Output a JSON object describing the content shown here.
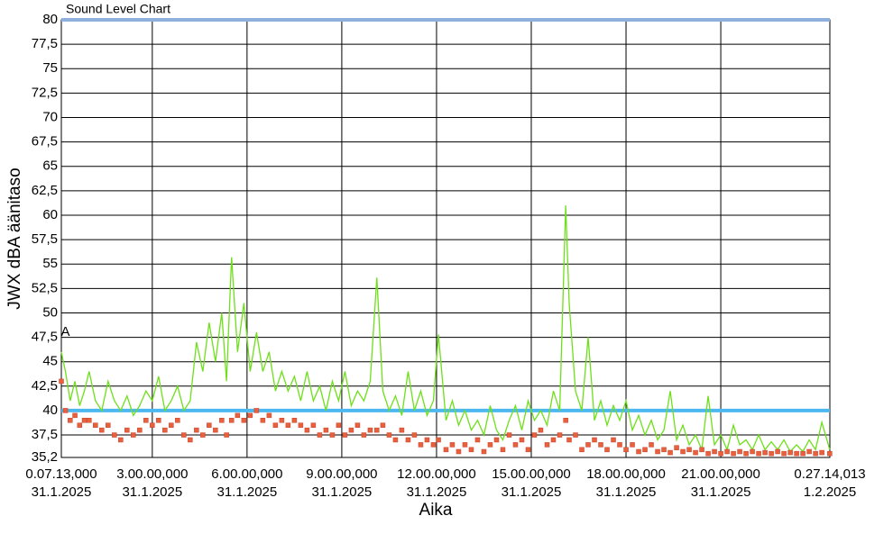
{
  "chart_data": {
    "type": "line",
    "title": "Sound Level Chart",
    "x_label": "Aika",
    "y_label": "JWX dBA äänitaso",
    "x": [
      0.12,
      0.25,
      0.4,
      0.55,
      0.7,
      0.85,
      1.0,
      1.2,
      1.4,
      1.6,
      1.8,
      2.0,
      2.2,
      2.4,
      2.6,
      2.8,
      3.0,
      3.2,
      3.4,
      3.6,
      3.8,
      4.0,
      4.2,
      4.4,
      4.6,
      4.8,
      5.0,
      5.2,
      5.35,
      5.51,
      5.7,
      5.9,
      6.1,
      6.3,
      6.5,
      6.7,
      6.9,
      7.1,
      7.3,
      7.5,
      7.7,
      7.9,
      8.1,
      8.3,
      8.5,
      8.7,
      8.9,
      9.1,
      9.3,
      9.5,
      9.7,
      9.9,
      10.11,
      10.3,
      10.5,
      10.7,
      10.9,
      11.1,
      11.3,
      11.5,
      11.7,
      11.9,
      12.06,
      12.3,
      12.5,
      12.7,
      12.9,
      13.1,
      13.3,
      13.5,
      13.7,
      13.9,
      14.1,
      14.3,
      14.5,
      14.7,
      14.9,
      15.1,
      15.3,
      15.5,
      15.7,
      15.9,
      16.09,
      16.2,
      16.4,
      16.6,
      16.8,
      17.0,
      17.2,
      17.4,
      17.6,
      17.8,
      18.0,
      18.2,
      18.4,
      18.6,
      18.8,
      19.0,
      19.2,
      19.4,
      19.6,
      19.8,
      20.0,
      20.2,
      20.4,
      20.6,
      20.8,
      21.0,
      21.2,
      21.4,
      21.6,
      21.8,
      22.0,
      22.2,
      22.4,
      22.6,
      22.8,
      23.0,
      23.2,
      23.4,
      23.6,
      23.8,
      24.0,
      24.2,
      24.45
    ],
    "series": [
      {
        "color": "#6ee01a",
        "marker": "none",
        "values": [
          46,
          44,
          41,
          43,
          40.5,
          42,
          44,
          41,
          40,
          43,
          41,
          40,
          41.5,
          39.5,
          40.5,
          42,
          41,
          43.5,
          40,
          41,
          42.5,
          40,
          41,
          47,
          44,
          49,
          45,
          50,
          43,
          55.7,
          46,
          51,
          44,
          48,
          44,
          46,
          42,
          44,
          42,
          43.5,
          41,
          44,
          41,
          42.5,
          40,
          43,
          41,
          44,
          40.5,
          42,
          41,
          43,
          53.6,
          42,
          40,
          41.5,
          39.5,
          44,
          40,
          42,
          39.5,
          41,
          47.8,
          39,
          41,
          38.5,
          40,
          38,
          39,
          37.5,
          40.5,
          38,
          37,
          39,
          40.5,
          38,
          41,
          39,
          40,
          38.5,
          42,
          40,
          61,
          51,
          42,
          40,
          47.5,
          39,
          41,
          38.5,
          40.5,
          39,
          41,
          38,
          39.5,
          37.5,
          39,
          37,
          38,
          42,
          37,
          38.5,
          36.5,
          37.5,
          36,
          41.5,
          36.5,
          37.5,
          36,
          38.5,
          36.5,
          37,
          36,
          37.5,
          36,
          36.8,
          36,
          37,
          35.8,
          36.5,
          35.8,
          37,
          36,
          38.8,
          36
        ]
      },
      {
        "color": "#e8603c",
        "marker": "square",
        "values": [
          43,
          40,
          39,
          39.5,
          38.5,
          39,
          39,
          38.5,
          38,
          38.5,
          37.5,
          37,
          38,
          37.5,
          38,
          39,
          38.5,
          39,
          38,
          38.5,
          39,
          37.5,
          37,
          38,
          37.5,
          38.5,
          38,
          39,
          37.5,
          39,
          39.5,
          39,
          39.5,
          40,
          39,
          39.5,
          38.5,
          39,
          38.5,
          39,
          38.5,
          38,
          38.5,
          37.5,
          38,
          37.5,
          38.5,
          37.5,
          38,
          38.5,
          37.5,
          38,
          38,
          38.5,
          37.5,
          37,
          38,
          37,
          37.5,
          36.5,
          37,
          36.5,
          37,
          36,
          36.5,
          35.8,
          36.5,
          36,
          37,
          35.8,
          36.5,
          37,
          36,
          37.5,
          36.5,
          37,
          36,
          37.5,
          38,
          36.5,
          37,
          37.5,
          39,
          37,
          37.5,
          36,
          36.5,
          37,
          36.5,
          36,
          37,
          36.5,
          36,
          36.5,
          35.8,
          36,
          36.5,
          35.8,
          36,
          35.7,
          36.2,
          35.8,
          36,
          35.7,
          36,
          35.6,
          35.8,
          35.6,
          35.8,
          35.6,
          35.8,
          35.6,
          35.8,
          35.6,
          35.7,
          35.6,
          35.8,
          35.6,
          35.7,
          35.6,
          35.6,
          35.8,
          35.6,
          35.7,
          35.6
        ]
      }
    ],
    "xlim": [
      0.12,
      24.454
    ],
    "xticks": [
      {
        "value": 0.12,
        "label": "0.07.13,000\n31.1.2025"
      },
      {
        "value": 3,
        "label": "3.00.00,000\n31.1.2025"
      },
      {
        "value": 6,
        "label": "6.00.00,000\n31.1.2025"
      },
      {
        "value": 9,
        "label": "9.00.00,000\n31.1.2025"
      },
      {
        "value": 12,
        "label": "12.00.00,000\n31.1.2025"
      },
      {
        "value": 15,
        "label": "15.00.00,000\n31.1.2025"
      },
      {
        "value": 18,
        "label": "18.00.00,000\n31.1.2025"
      },
      {
        "value": 21,
        "label": "21.00.00,000\n31.1.2025"
      },
      {
        "value": 24.454,
        "label": "0.27.14,013\n1.2.2025"
      }
    ],
    "ylim": [
      35.2,
      80
    ],
    "yticks": [
      {
        "value": 35.2,
        "label": "35,2"
      },
      {
        "value": 37.5,
        "label": "37,5"
      },
      40,
      {
        "value": 42.5,
        "label": "42,5"
      },
      45,
      {
        "value": 47.5,
        "label": "47,5"
      },
      50,
      {
        "value": 52.5,
        "label": "52,5"
      },
      55,
      {
        "value": 57.5,
        "label": "57,5"
      },
      60,
      {
        "value": 62.5,
        "label": "62,5"
      },
      65,
      {
        "value": 67.5,
        "label": "67,5"
      },
      70,
      {
        "value": 72.5,
        "label": "72,5"
      },
      75,
      {
        "value": 77.5,
        "label": "77,5"
      },
      80
    ],
    "grid": true,
    "reference_lines": [
      {
        "value": 40,
        "color": "#4db8f0"
      },
      {
        "value": 80,
        "color": "#8fb0dc"
      }
    ],
    "annotations": [
      {
        "text": "A",
        "x": 0.25,
        "y": 48
      }
    ]
  }
}
